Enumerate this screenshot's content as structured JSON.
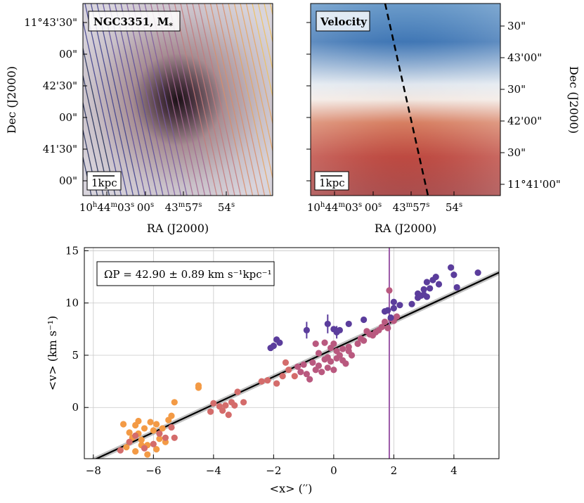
{
  "panels": {
    "mass": {
      "title": "NGC3351, M",
      "title_sub": "*",
      "scalebar": "1kpc"
    },
    "velocity": {
      "title": "Velocity",
      "scalebar": "1kpc"
    },
    "dec_ticks_left": [
      "11°43'30\"",
      "00\"",
      "42'30\"",
      "00\"",
      "41'30\"",
      "00\""
    ],
    "dec_ticks_right": [
      "30\"",
      "43'00\"",
      "30\"",
      "42'00\"",
      "30\"",
      "11°41'00\""
    ],
    "ra_ticks": [
      {
        "main": "10",
        "sup1": "h",
        "mid": "44",
        "sup2": "m",
        "end": "03",
        "sup3": "s"
      },
      {
        "main": "00",
        "sup1": "s"
      },
      {
        "main": "43",
        "sup1": "m",
        "end": "57",
        "sup2": "s"
      },
      {
        "main": "54",
        "sup1": "s"
      }
    ],
    "ra_label": "RA (J2000)",
    "dec_label": "Dec (J2000)"
  },
  "chart_data": {
    "type": "scatter",
    "title": "",
    "xlabel": "<x> (′′)",
    "ylabel": "<v> (km s⁻¹)",
    "xlim": [
      -8.3,
      5.5
    ],
    "ylim": [
      -4.9,
      15.3
    ],
    "xticks": [
      -8,
      -6,
      -4,
      -2,
      0,
      2,
      4
    ],
    "yticks": [
      0,
      5,
      10,
      15
    ],
    "grid": true,
    "annotation": "ΩP = 42.90 ± 0.89 km s⁻¹kpc⁻¹",
    "fit_line": {
      "slope": 1.33,
      "intercept": 5.6,
      "color": "#000000"
    },
    "vertical_line": {
      "x": 1.85,
      "color": "#9b59a8"
    },
    "series": [
      {
        "name": "orange",
        "color": "#f39a45",
        "points": [
          [
            -7.0,
            -1.6
          ],
          [
            -6.8,
            -2.4
          ],
          [
            -6.7,
            -2.9
          ],
          [
            -6.6,
            -1.7
          ],
          [
            -6.5,
            -2.5
          ],
          [
            -6.4,
            -3.1
          ],
          [
            -6.3,
            -2.0
          ],
          [
            -6.2,
            -3.6
          ],
          [
            -6.1,
            -1.4
          ],
          [
            -6.0,
            -2.2
          ],
          [
            -5.9,
            -1.6
          ],
          [
            -5.8,
            -3.0
          ],
          [
            -5.7,
            -2.0
          ],
          [
            -5.6,
            -3.3
          ],
          [
            -5.5,
            -1.2
          ],
          [
            -5.4,
            -0.8
          ],
          [
            -5.3,
            0.5
          ],
          [
            -6.9,
            -3.8
          ],
          [
            -6.6,
            -4.2
          ],
          [
            -6.4,
            -3.6
          ],
          [
            -6.2,
            -4.5
          ],
          [
            -5.9,
            -4.0
          ],
          [
            -6.5,
            -1.3
          ],
          [
            -4.5,
            2.1
          ],
          [
            -4.5,
            1.9
          ]
        ]
      },
      {
        "name": "rose",
        "color": "#d46c6b",
        "points": [
          [
            -7.1,
            -4.1
          ],
          [
            -6.8,
            -3.3
          ],
          [
            -6.6,
            -2.7
          ],
          [
            -6.3,
            -3.9
          ],
          [
            -6.0,
            -3.5
          ],
          [
            -5.8,
            -2.5
          ],
          [
            -5.6,
            -2.9
          ],
          [
            -5.4,
            -1.9
          ],
          [
            -5.3,
            -2.9
          ],
          [
            -4.0,
            0.4
          ],
          [
            -3.8,
            0.1
          ],
          [
            -3.7,
            -0.3
          ],
          [
            -3.6,
            0.2
          ],
          [
            -3.5,
            -0.7
          ],
          [
            -3.4,
            0.5
          ],
          [
            -3.3,
            0.2
          ],
          [
            -3.2,
            1.5
          ],
          [
            -3.0,
            0.5
          ],
          [
            -4.1,
            -0.4
          ],
          [
            -2.4,
            2.5
          ],
          [
            -2.2,
            2.6
          ],
          [
            -1.9,
            2.3
          ],
          [
            -1.6,
            4.3
          ],
          [
            -1.7,
            3.0
          ],
          [
            -1.5,
            3.6
          ],
          [
            -1.3,
            3.0
          ]
        ]
      },
      {
        "name": "mauve",
        "color": "#b9597f",
        "points": [
          [
            -1.2,
            3.9
          ],
          [
            -1.1,
            3.4
          ],
          [
            -1.0,
            4.1
          ],
          [
            -0.9,
            3.2
          ],
          [
            -0.8,
            2.7
          ],
          [
            -0.7,
            4.3
          ],
          [
            -0.6,
            3.6
          ],
          [
            -0.5,
            4.0
          ],
          [
            -0.4,
            3.4
          ],
          [
            -0.3,
            4.6
          ],
          [
            -0.2,
            3.8
          ],
          [
            -0.1,
            4.4
          ],
          [
            0.0,
            3.6
          ],
          [
            0.1,
            4.7
          ],
          [
            0.2,
            5.0
          ],
          [
            0.3,
            5.6
          ],
          [
            0.4,
            4.2
          ],
          [
            0.5,
            5.4
          ],
          [
            0.6,
            5.0
          ],
          [
            0.8,
            6.1
          ],
          [
            0.9,
            6.6
          ],
          [
            1.0,
            6.4
          ],
          [
            1.2,
            7.0
          ],
          [
            1.3,
            6.9
          ],
          [
            1.4,
            7.2
          ],
          [
            1.5,
            7.4
          ],
          [
            1.6,
            7.7
          ],
          [
            1.7,
            8.2
          ],
          [
            1.8,
            7.6
          ],
          [
            1.9,
            8.5
          ],
          [
            2.0,
            8.3
          ],
          [
            2.1,
            8.7
          ],
          [
            1.85,
            11.2
          ],
          [
            -0.6,
            6.1
          ],
          [
            -0.5,
            5.2
          ],
          [
            -0.3,
            6.2
          ],
          [
            -0.2,
            4.8
          ],
          [
            -0.1,
            5.7
          ],
          [
            0.0,
            6.1
          ],
          [
            0.1,
            5.4
          ],
          [
            0.3,
            4.5
          ],
          [
            0.5,
            5.8
          ],
          [
            1.1,
            7.3
          ]
        ]
      },
      {
        "name": "indigo",
        "color": "#5b3d9c",
        "points": [
          [
            -2.1,
            5.7
          ],
          [
            -2.0,
            5.9
          ],
          [
            -1.9,
            6.5
          ],
          [
            -1.8,
            6.2
          ],
          [
            -0.9,
            7.4
          ],
          [
            -0.2,
            8.0
          ],
          [
            0.0,
            7.5
          ],
          [
            0.1,
            7.2
          ],
          [
            0.2,
            7.4
          ],
          [
            0.5,
            8.0
          ],
          [
            1.0,
            8.4
          ],
          [
            1.7,
            9.2
          ],
          [
            1.8,
            9.3
          ],
          [
            1.9,
            8.6
          ],
          [
            2.0,
            9.5
          ],
          [
            2.2,
            9.8
          ],
          [
            2.6,
            9.9
          ],
          [
            2.8,
            10.9
          ],
          [
            2.9,
            10.7
          ],
          [
            3.0,
            11.3
          ],
          [
            3.1,
            12.0
          ],
          [
            3.2,
            11.4
          ],
          [
            3.3,
            12.2
          ],
          [
            3.4,
            12.5
          ],
          [
            3.5,
            11.8
          ],
          [
            3.1,
            10.6
          ],
          [
            3.0,
            10.8
          ],
          [
            2.8,
            10.5
          ],
          [
            3.9,
            13.4
          ],
          [
            4.0,
            12.7
          ],
          [
            4.1,
            11.5
          ],
          [
            4.8,
            12.9
          ],
          [
            2.0,
            10.1
          ]
        ]
      }
    ],
    "error_bars": [
      {
        "x": -0.9,
        "y": 7.4,
        "err": 0.8
      },
      {
        "x": -0.2,
        "y": 8.0,
        "err": 0.9
      },
      {
        "x": 0.1,
        "y": 7.2,
        "err": 0.6
      }
    ]
  }
}
